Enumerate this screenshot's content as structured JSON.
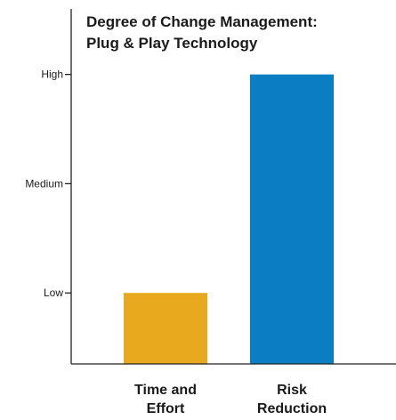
{
  "chart_data": {
    "type": "bar",
    "title_lines": [
      "Degree of Change Management:",
      "Plug & Play Technology"
    ],
    "categories": [
      {
        "label_lines": [
          "Time and",
          "Effort"
        ]
      },
      {
        "label_lines": [
          "Risk",
          "Reduction"
        ]
      }
    ],
    "values": [
      1,
      3
    ],
    "y_ticks": [
      {
        "value": 1,
        "label": "Low"
      },
      {
        "value": 2,
        "label": "Medium"
      },
      {
        "value": 3,
        "label": "High"
      }
    ],
    "ylim": [
      0.35,
      3.6
    ],
    "colors": [
      "#E8A91F",
      "#0A7DC3"
    ],
    "grid": false,
    "legend": "none"
  }
}
